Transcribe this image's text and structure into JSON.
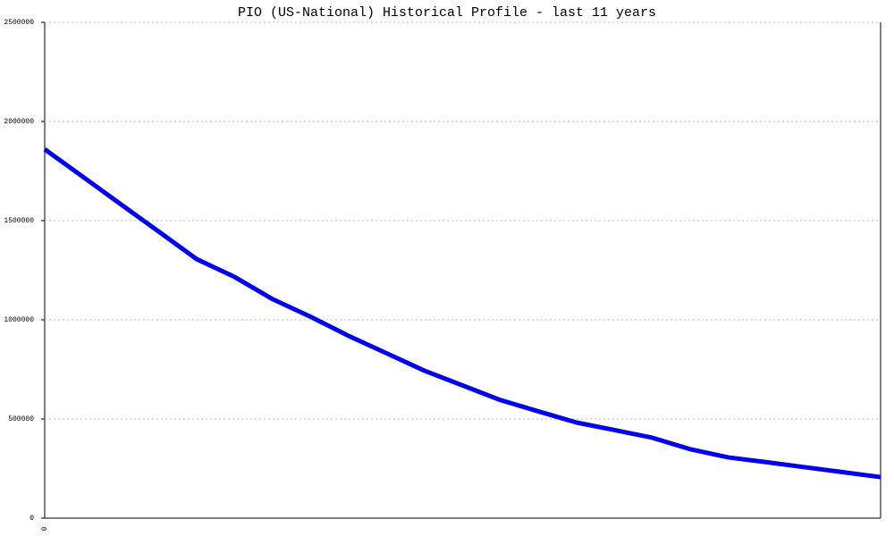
{
  "chart_data": {
    "type": "line",
    "title": "PIO (US-National) Historical Profile - last 11 years",
    "categories": [
      "0",
      null,
      null,
      null,
      null,
      null,
      null,
      null,
      null,
      null,
      null,
      null,
      null,
      null,
      null,
      null,
      null,
      null,
      null,
      null,
      null,
      null,
      null
    ],
    "series": [
      {
        "name": "PIO",
        "color": "#0000ee",
        "values": [
          1860000,
          1722000,
          1583000,
          1445000,
          1306000,
          1216000,
          1104000,
          1015000,
          919000,
          831000,
          743000,
          669000,
          595000,
          538000,
          482000,
          444000,
          405000,
          347000,
          306000,
          282000,
          257000,
          232000,
          207000
        ]
      }
    ],
    "ylim": [
      0,
      2500000
    ],
    "yticks": [
      0,
      500000,
      1000000,
      1500000,
      2000000,
      2500000
    ],
    "grid": true
  }
}
